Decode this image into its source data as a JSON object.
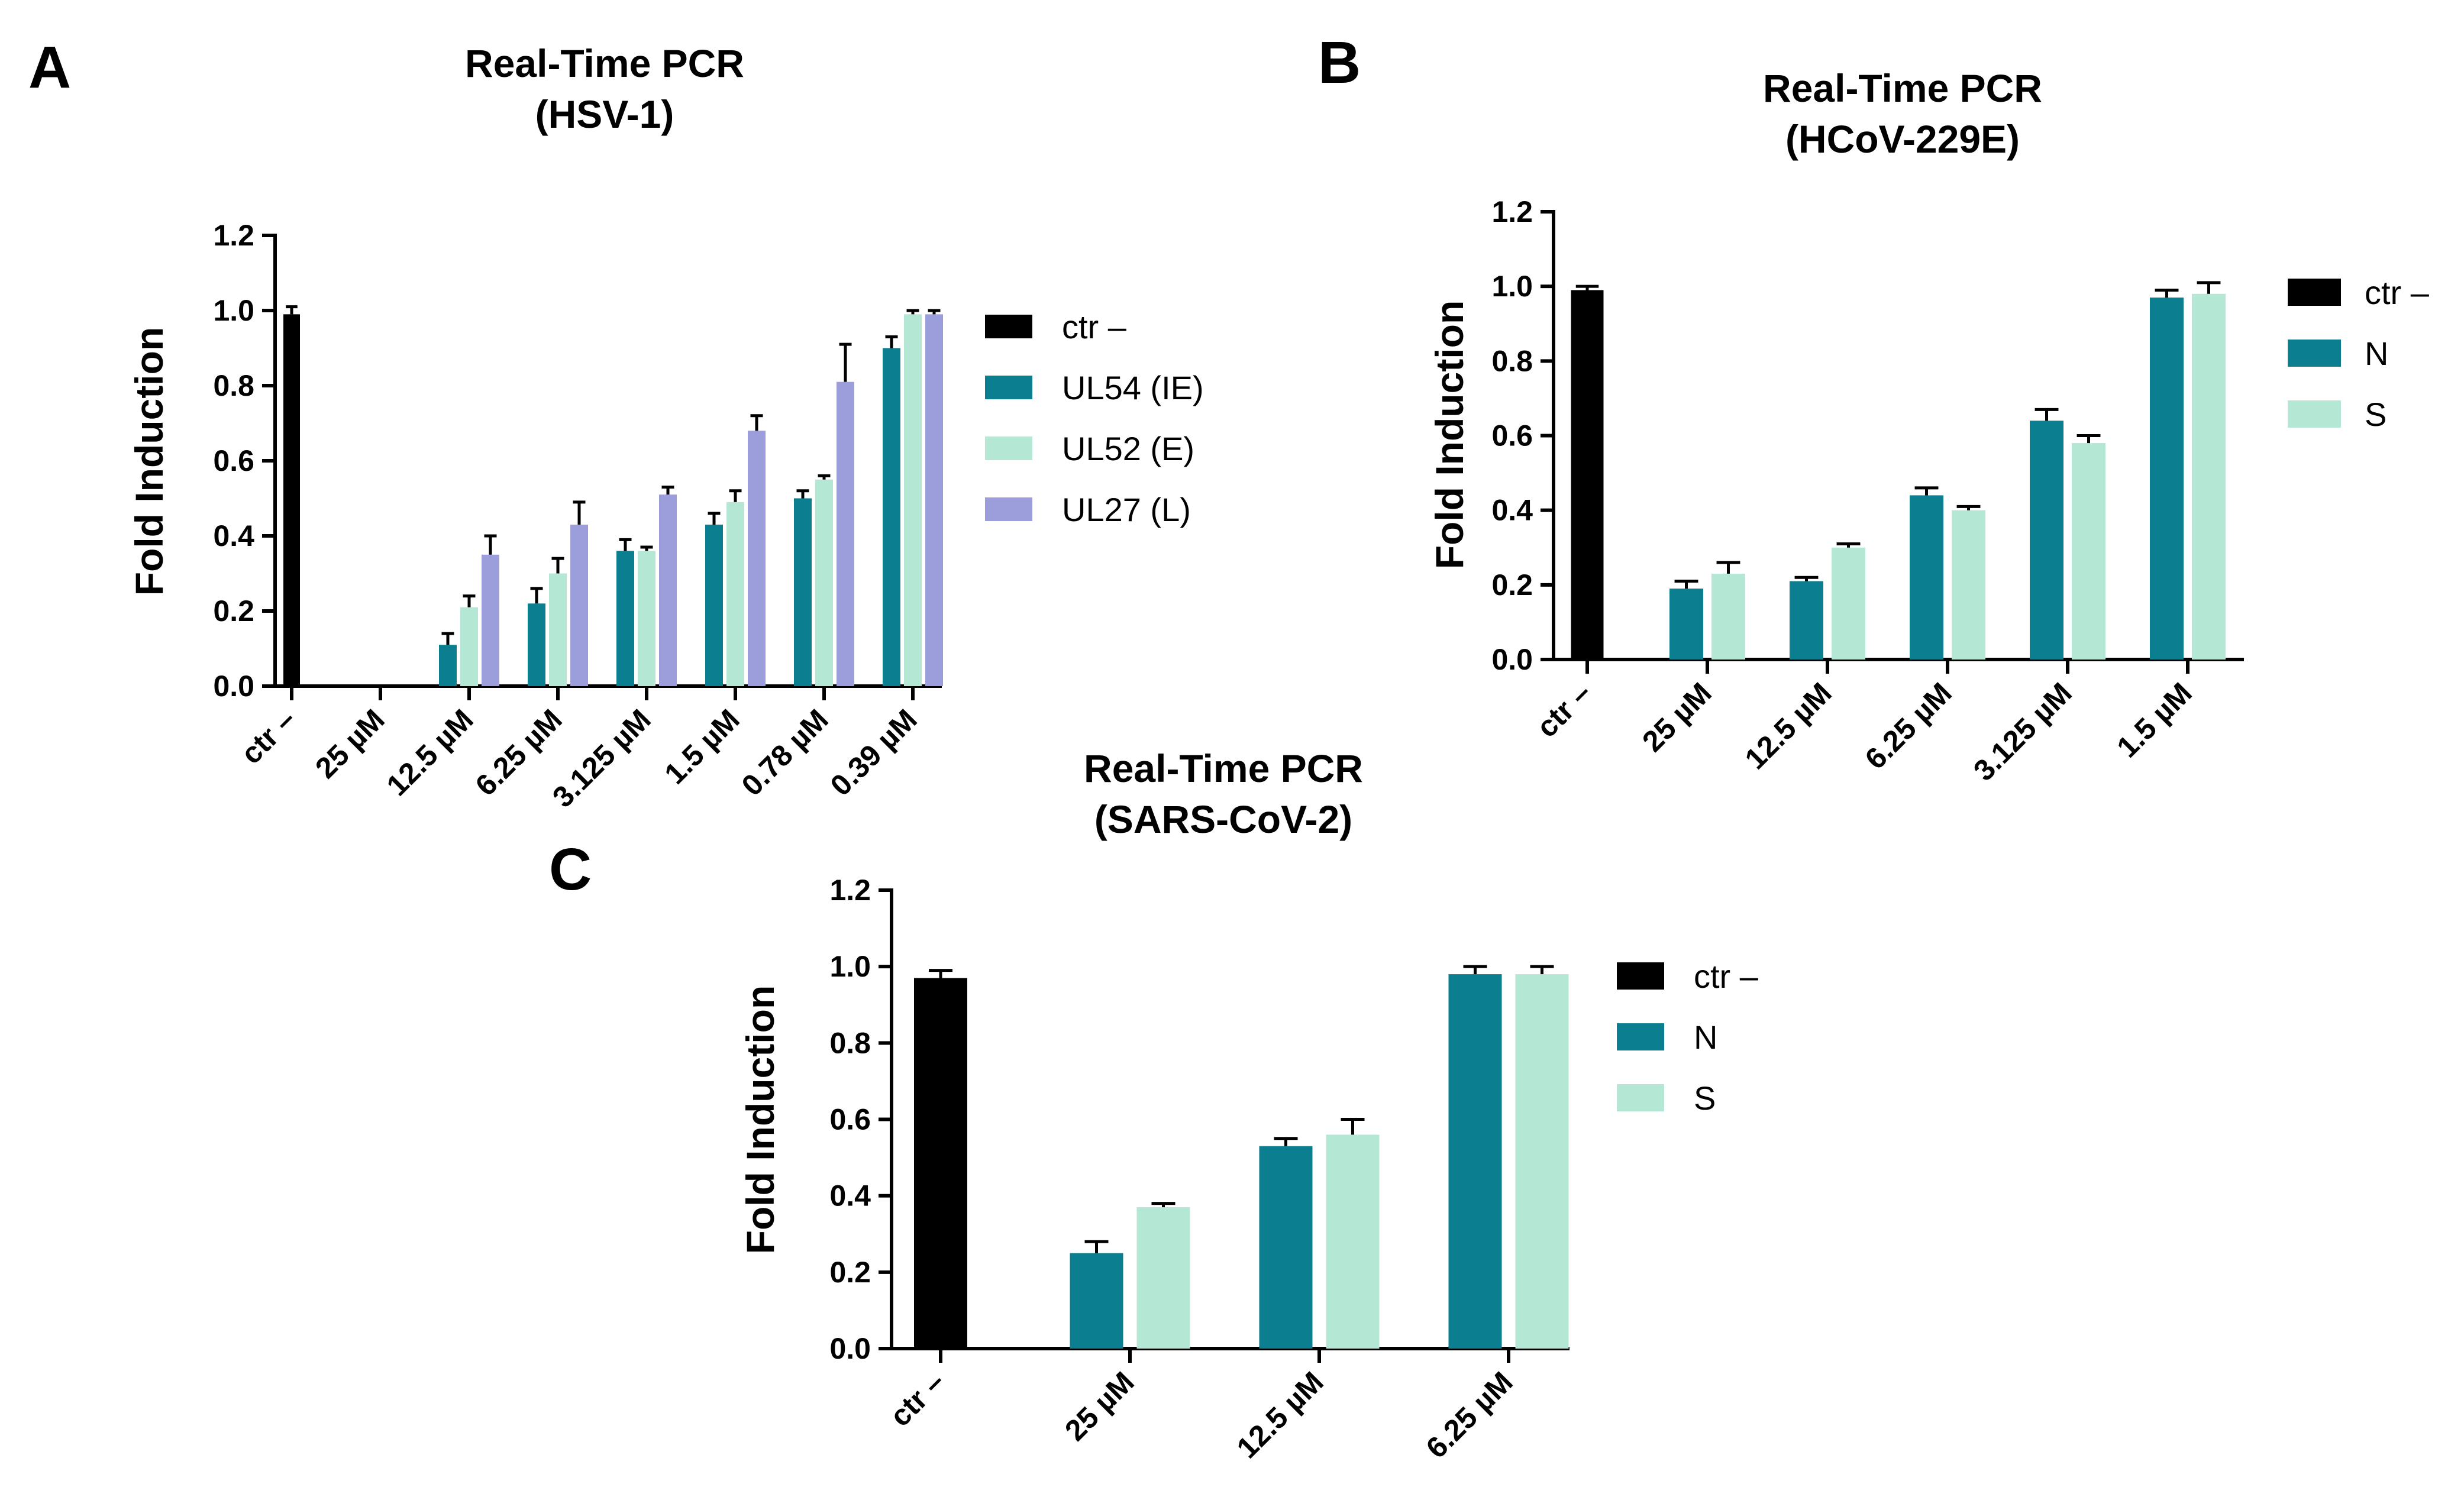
{
  "chart_data": [
    {
      "id": "A",
      "panel_label": "A",
      "type": "bar",
      "title": [
        "Real-Time PCR",
        "(HSV-1)"
      ],
      "ylabel": "Fold Induction",
      "xlabel": "",
      "ylim": [
        0,
        1.2
      ],
      "yticks": [
        "0.0",
        "0.2",
        "0.4",
        "0.6",
        "0.8",
        "1.0",
        "1.2"
      ],
      "grid": false,
      "legend_position": "right",
      "categories": [
        "ctr –",
        "25 µM",
        "12.5 µM",
        "6.25 µM",
        "3.125 µM",
        "1.5 µM",
        "0.78 µM",
        "0.39 µM"
      ],
      "control": {
        "name": "ctr –",
        "value": 0.99,
        "error": 0.02,
        "color": "#000000"
      },
      "series": [
        {
          "name": "UL54 (IE)",
          "color": "#0b7f8f",
          "values": [
            null,
            0.0,
            0.11,
            0.22,
            0.36,
            0.43,
            0.5,
            0.9
          ],
          "errors": [
            null,
            0.0,
            0.03,
            0.04,
            0.03,
            0.03,
            0.02,
            0.03
          ]
        },
        {
          "name": "UL52 (E)",
          "color": "#b4e8d5",
          "values": [
            null,
            0.0,
            0.21,
            0.3,
            0.36,
            0.49,
            0.55,
            0.99
          ],
          "errors": [
            null,
            0.0,
            0.03,
            0.04,
            0.01,
            0.03,
            0.01,
            0.01
          ]
        },
        {
          "name": "UL27 (L)",
          "color": "#9c9edb",
          "values": [
            null,
            0.0,
            0.35,
            0.43,
            0.51,
            0.68,
            0.81,
            0.99
          ],
          "errors": [
            null,
            0.0,
            0.05,
            0.06,
            0.02,
            0.04,
            0.1,
            0.01
          ]
        }
      ]
    },
    {
      "id": "B",
      "panel_label": "B",
      "type": "bar",
      "title": [
        "Real-Time PCR",
        "(HCoV-229E)"
      ],
      "ylabel": "Fold Induction",
      "xlabel": "",
      "ylim": [
        0,
        1.2
      ],
      "yticks": [
        "0.0",
        "0.2",
        "0.4",
        "0.6",
        "0.8",
        "1.0",
        "1.2"
      ],
      "grid": false,
      "legend_position": "right",
      "categories": [
        "ctr –",
        "25 µM",
        "12.5 µM",
        "6.25 µM",
        "3.125 µM",
        "1.5 µM"
      ],
      "control": {
        "name": "ctr –",
        "value": 0.99,
        "error": 0.01,
        "color": "#000000"
      },
      "series": [
        {
          "name": "N",
          "color": "#0b7f8f",
          "values": [
            null,
            0.19,
            0.21,
            0.44,
            0.64,
            0.97
          ],
          "errors": [
            null,
            0.02,
            0.01,
            0.02,
            0.03,
            0.02
          ]
        },
        {
          "name": "S",
          "color": "#b4e8d5",
          "values": [
            null,
            0.23,
            0.3,
            0.4,
            0.58,
            0.98
          ],
          "errors": [
            null,
            0.03,
            0.01,
            0.01,
            0.02,
            0.03
          ]
        }
      ]
    },
    {
      "id": "C",
      "panel_label": "C",
      "type": "bar",
      "title": [
        "Real-Time PCR",
        "(SARS-CoV-2)"
      ],
      "ylabel": "Fold Induction",
      "xlabel": "",
      "ylim": [
        0,
        1.2
      ],
      "yticks": [
        "0.0",
        "0.2",
        "0.4",
        "0.6",
        "0.8",
        "1.0",
        "1.2"
      ],
      "grid": false,
      "legend_position": "right",
      "categories": [
        "ctr –",
        "25 µM",
        "12.5 µM",
        "6.25 µM"
      ],
      "control": {
        "name": "ctr –",
        "value": 0.97,
        "error": 0.02,
        "color": "#000000"
      },
      "series": [
        {
          "name": "N",
          "color": "#0b7f8f",
          "values": [
            null,
            0.25,
            0.53,
            0.98
          ],
          "errors": [
            null,
            0.03,
            0.02,
            0.02
          ]
        },
        {
          "name": "S",
          "color": "#b4e8d5",
          "values": [
            null,
            0.37,
            0.56,
            0.98
          ],
          "errors": [
            null,
            0.01,
            0.04,
            0.02
          ]
        }
      ]
    }
  ]
}
